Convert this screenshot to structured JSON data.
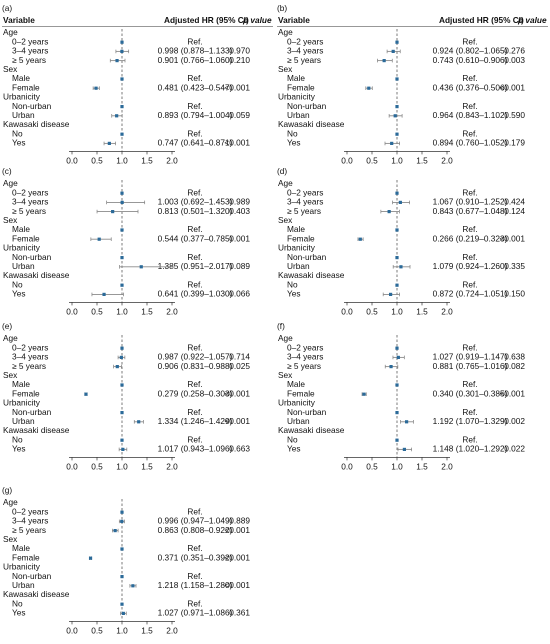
{
  "header": {
    "variable": "Variable",
    "hr": "Adjusted HR (95% CI)",
    "p": "p value"
  },
  "groups": [
    {
      "name": "Age",
      "items": [
        "0–2 years",
        "3–4 years",
        "≥ 5 years"
      ]
    },
    {
      "name": "Sex",
      "items": [
        "Male",
        "Female"
      ]
    },
    {
      "name": "Urbanicity",
      "items": [
        "Non-urban",
        "Urban"
      ]
    },
    {
      "name": "Kawasaki disease",
      "items": [
        "No",
        "Yes"
      ]
    }
  ],
  "axis": {
    "xlim": [
      0,
      2
    ],
    "xticks": [
      {
        "value": 0,
        "label": "0.0"
      },
      {
        "value": 0.5,
        "label": "0.5"
      },
      {
        "value": 1,
        "label": "1.0"
      },
      {
        "value": 1.5,
        "label": "1.5"
      },
      {
        "value": 2,
        "label": "2.0"
      }
    ],
    "reference": 1
  },
  "point_color": "#2b6a99",
  "ci_color": "#8a8a8a",
  "panels": [
    {
      "label": "(a)",
      "show_header": true,
      "rows": [
        [
          {
            "hr": 1,
            "label": "Ref."
          },
          {
            "hr": 0.998,
            "lo": 0.878,
            "hi": 1.133,
            "label": "0.998 (0.878–1.133)",
            "p": "0.970"
          },
          {
            "hr": 0.901,
            "lo": 0.766,
            "hi": 1.06,
            "label": "0.901 (0.766–1.060)",
            "p": "0.210"
          }
        ],
        [
          {
            "hr": 1,
            "label": "Ref."
          },
          {
            "hr": 0.481,
            "lo": 0.423,
            "hi": 0.547,
            "label": "0.481 (0.423–0.547)",
            "p": "<0.001"
          }
        ],
        [
          {
            "hr": 1,
            "label": "Ref."
          },
          {
            "hr": 0.893,
            "lo": 0.794,
            "hi": 1.004,
            "label": "0.893 (0.794–1.004)",
            "p": "0.059"
          }
        ],
        [
          {
            "hr": 1,
            "label": "Ref."
          },
          {
            "hr": 0.747,
            "lo": 0.641,
            "hi": 0.871,
            "label": "0.747 (0.641–0.871)",
            "p": "<0.001"
          }
        ]
      ]
    },
    {
      "label": "(b)",
      "show_header": true,
      "rows": [
        [
          {
            "hr": 1,
            "label": "Ref."
          },
          {
            "hr": 0.924,
            "lo": 0.802,
            "hi": 1.065,
            "label": "0.924 (0.802–1.065)",
            "p": "0.276"
          },
          {
            "hr": 0.743,
            "lo": 0.61,
            "hi": 0.906,
            "label": "0.743 (0.610–0.906)",
            "p": "0.003"
          }
        ],
        [
          {
            "hr": 1,
            "label": "Ref."
          },
          {
            "hr": 0.436,
            "lo": 0.376,
            "hi": 0.506,
            "label": "0.436 (0.376–0.506)",
            "p": "<0.001"
          }
        ],
        [
          {
            "hr": 1,
            "label": "Ref."
          },
          {
            "hr": 0.964,
            "lo": 0.843,
            "hi": 1.102,
            "label": "0.964 (0.843–1.102)",
            "p": "0.590"
          }
        ],
        [
          {
            "hr": 1,
            "label": "Ref."
          },
          {
            "hr": 0.894,
            "lo": 0.76,
            "hi": 1.052,
            "label": "0.894 (0.760–1.052)",
            "p": "0.179"
          }
        ]
      ]
    },
    {
      "label": "(c)",
      "show_header": false,
      "rows": [
        [
          {
            "hr": 1,
            "label": "Ref."
          },
          {
            "hr": 1.003,
            "lo": 0.692,
            "hi": 1.453,
            "label": "1.003 (0.692–1.453)",
            "p": "0.989"
          },
          {
            "hr": 0.813,
            "lo": 0.501,
            "hi": 1.32,
            "label": "0.813 (0.501–1.320)",
            "p": "0.403"
          }
        ],
        [
          {
            "hr": 1,
            "label": "Ref."
          },
          {
            "hr": 0.544,
            "lo": 0.377,
            "hi": 0.785,
            "label": "0.544 (0.377–0.785)",
            "p": "0.001"
          }
        ],
        [
          {
            "hr": 1,
            "label": "Ref."
          },
          {
            "hr": 1.385,
            "lo": 0.951,
            "hi": 2.017,
            "label": "1.385 (0.951–2.017)",
            "p": "0.089"
          }
        ],
        [
          {
            "hr": 1,
            "label": "Ref."
          },
          {
            "hr": 0.641,
            "lo": 0.399,
            "hi": 1.03,
            "label": "0.641 (0.399–1.030)",
            "p": "0.066"
          }
        ]
      ]
    },
    {
      "label": "(d)",
      "show_header": false,
      "rows": [
        [
          {
            "hr": 1,
            "label": "Ref."
          },
          {
            "hr": 1.067,
            "lo": 0.91,
            "hi": 1.252,
            "label": "1.067 (0.910–1.252)",
            "p": "0.424"
          },
          {
            "hr": 0.843,
            "lo": 0.677,
            "hi": 1.048,
            "label": "0.843 (0.677–1.048)",
            "p": "0.124"
          }
        ],
        [
          {
            "hr": 1,
            "label": "Ref."
          },
          {
            "hr": 0.266,
            "lo": 0.219,
            "hi": 0.323,
            "label": "0.266 (0.219–0.323)",
            "p": "<0.001"
          }
        ],
        [
          {
            "hr": 1,
            "label": "Ref."
          },
          {
            "hr": 1.079,
            "lo": 0.924,
            "hi": 1.26,
            "label": "1.079 (0.924–1.260)",
            "p": "0.335"
          }
        ],
        [
          {
            "hr": 1,
            "label": "Ref."
          },
          {
            "hr": 0.872,
            "lo": 0.724,
            "hi": 1.051,
            "label": "0.872 (0.724–1.051)",
            "p": "0.150"
          }
        ]
      ]
    },
    {
      "label": "(e)",
      "show_header": false,
      "rows": [
        [
          {
            "hr": 1,
            "label": "Ref."
          },
          {
            "hr": 0.987,
            "lo": 0.922,
            "hi": 1.057,
            "label": "0.987 (0.922–1.057)",
            "p": "0.714"
          },
          {
            "hr": 0.906,
            "lo": 0.831,
            "hi": 0.988,
            "label": "0.906 (0.831–0.988)",
            "p": "0.025"
          }
        ],
        [
          {
            "hr": 1,
            "label": "Ref."
          },
          {
            "hr": 0.279,
            "lo": 0.258,
            "hi": 0.303,
            "label": "0.279 (0.258–0.303)",
            "p": "<0.001"
          }
        ],
        [
          {
            "hr": 1,
            "label": "Ref."
          },
          {
            "hr": 1.334,
            "lo": 1.246,
            "hi": 1.429,
            "label": "1.334 (1.246–1.429)",
            "p": "<0.001"
          }
        ],
        [
          {
            "hr": 1,
            "label": "Ref."
          },
          {
            "hr": 1.017,
            "lo": 0.943,
            "hi": 1.096,
            "label": "1.017 (0.943–1.096)",
            "p": "0.663"
          }
        ]
      ]
    },
    {
      "label": "(f)",
      "show_header": false,
      "rows": [
        [
          {
            "hr": 1,
            "label": "Ref."
          },
          {
            "hr": 1.027,
            "lo": 0.919,
            "hi": 1.147,
            "label": "1.027 (0.919–1.147)",
            "p": "0.638"
          },
          {
            "hr": 0.881,
            "lo": 0.765,
            "hi": 1.016,
            "label": "0.881 (0.765–1.016)",
            "p": "0.082"
          }
        ],
        [
          {
            "hr": 1,
            "label": "Ref."
          },
          {
            "hr": 0.34,
            "lo": 0.301,
            "hi": 0.385,
            "label": "0.340 (0.301–0.385)",
            "p": "<0.001"
          }
        ],
        [
          {
            "hr": 1,
            "label": "Ref."
          },
          {
            "hr": 1.192,
            "lo": 1.07,
            "hi": 1.329,
            "label": "1.192 (1.070–1.329)",
            "p": "0.002"
          }
        ],
        [
          {
            "hr": 1,
            "label": "Ref."
          },
          {
            "hr": 1.148,
            "lo": 1.02,
            "hi": 1.292,
            "label": "1.148 (1.020–1.292)",
            "p": "0.022"
          }
        ]
      ]
    },
    {
      "label": "(g)",
      "show_header": false,
      "rows": [
        [
          {
            "hr": 1,
            "label": "Ref."
          },
          {
            "hr": 0.996,
            "lo": 0.947,
            "hi": 1.049,
            "label": "0.996 (0.947–1.049)",
            "p": "0.889"
          },
          {
            "hr": 0.863,
            "lo": 0.808,
            "hi": 0.922,
            "label": "0.863 (0.808–0.922)",
            "p": "<0.001"
          }
        ],
        [
          {
            "hr": 1,
            "label": "Ref."
          },
          {
            "hr": 0.371,
            "lo": 0.351,
            "hi": 0.392,
            "label": "0.371 (0.351–0.392)",
            "p": "<0.001"
          }
        ],
        [
          {
            "hr": 1,
            "label": "Ref."
          },
          {
            "hr": 1.218,
            "lo": 1.158,
            "hi": 1.28,
            "label": "1.218 (1.158–1.280)",
            "p": "<0.001"
          }
        ],
        [
          {
            "hr": 1,
            "label": "Ref."
          },
          {
            "hr": 1.027,
            "lo": 0.971,
            "hi": 1.086,
            "label": "1.027 (0.971–1.086)",
            "p": "0.361"
          }
        ]
      ]
    }
  ]
}
